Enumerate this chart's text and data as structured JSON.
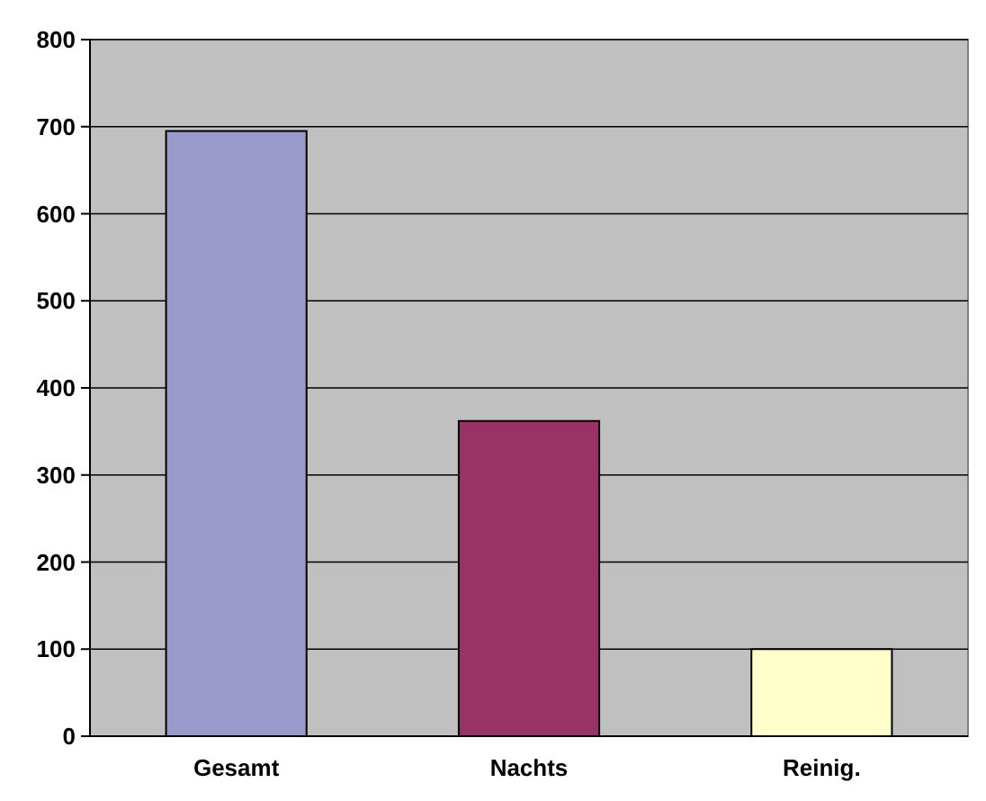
{
  "chart_data": {
    "type": "bar",
    "categories": [
      "Gesamt",
      "Nachts",
      "Reinig."
    ],
    "values": [
      695,
      362,
      100
    ],
    "colors": [
      "#9999cc",
      "#993366",
      "#ffffcc"
    ],
    "ylim": [
      0,
      800
    ],
    "yticks": [
      0,
      100,
      200,
      300,
      400,
      500,
      600,
      700,
      800
    ],
    "grid": "y"
  }
}
